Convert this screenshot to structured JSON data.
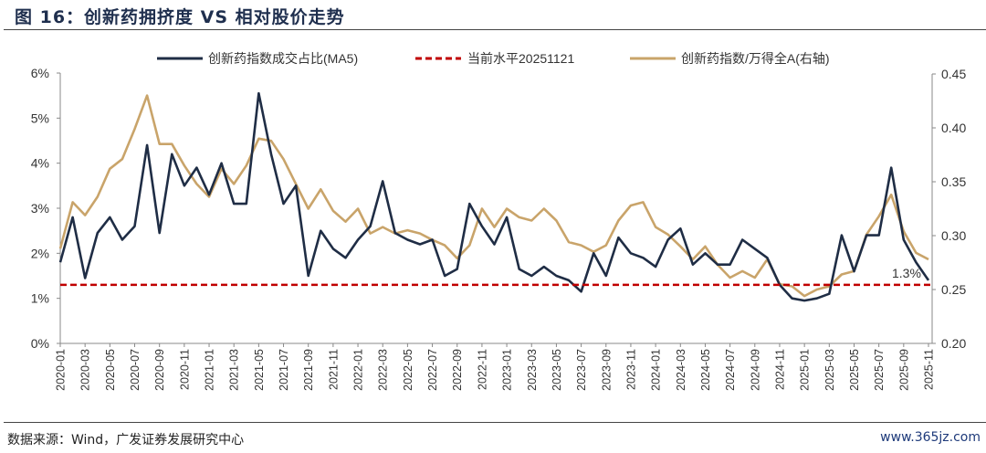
{
  "title": "图 16：创新药拥挤度 VS 相对股价走势",
  "source": "数据来源：Wind，广发证券发展研究中心",
  "watermark": "www.365jz.com",
  "chart_data": {
    "type": "line",
    "x": [
      "2020-01",
      "2020-02",
      "2020-03",
      "2020-04",
      "2020-05",
      "2020-06",
      "2020-07",
      "2020-08",
      "2020-09",
      "2020-10",
      "2020-11",
      "2020-12",
      "2021-01",
      "2021-02",
      "2021-03",
      "2021-04",
      "2021-05",
      "2021-06",
      "2021-07",
      "2021-08",
      "2021-09",
      "2021-10",
      "2021-11",
      "2021-12",
      "2022-01",
      "2022-02",
      "2022-03",
      "2022-04",
      "2022-05",
      "2022-06",
      "2022-07",
      "2022-08",
      "2022-09",
      "2022-10",
      "2022-11",
      "2022-12",
      "2023-01",
      "2023-02",
      "2023-03",
      "2023-04",
      "2023-05",
      "2023-06",
      "2023-07",
      "2023-08",
      "2023-09",
      "2023-10",
      "2023-11",
      "2023-12",
      "2024-01",
      "2024-02",
      "2024-03",
      "2024-04",
      "2024-05",
      "2024-06",
      "2024-07",
      "2024-08",
      "2024-09",
      "2024-10",
      "2024-11",
      "2024-12",
      "2025-01",
      "2025-02",
      "2025-03",
      "2025-04",
      "2025-05",
      "2025-06",
      "2025-07",
      "2025-08",
      "2025-09",
      "2025-10",
      "2025-11"
    ],
    "x_tick_labels": [
      "2020-01",
      "2020-03",
      "2020-05",
      "2020-07",
      "2020-09",
      "2020-11",
      "2021-01",
      "2021-03",
      "2021-05",
      "2021-07",
      "2021-09",
      "2021-11",
      "2022-01",
      "2022-03",
      "2022-05",
      "2022-07",
      "2022-09",
      "2022-11",
      "2023-01",
      "2023-03",
      "2023-05",
      "2023-07",
      "2023-09",
      "2023-11",
      "2024-01",
      "2024-03",
      "2024-05",
      "2024-07",
      "2024-09",
      "2024-11",
      "2025-01",
      "2025-03",
      "2025-05",
      "2025-07",
      "2025-09",
      "2025-11"
    ],
    "left_axis": {
      "ylim": [
        0,
        6
      ],
      "unit": "%",
      "tick_labels": [
        "0%",
        "1%",
        "2%",
        "3%",
        "4%",
        "5%",
        "6%"
      ]
    },
    "right_axis": {
      "ylim": [
        0.2,
        0.45
      ],
      "tick_labels": [
        "0.20",
        "0.25",
        "0.30",
        "0.35",
        "0.40",
        "0.45"
      ]
    },
    "series": [
      {
        "name": "创新药指数成交占比(MA5)",
        "axis": "left",
        "color": "#1f2d45",
        "values": [
          1.8,
          2.8,
          1.45,
          2.45,
          2.8,
          2.3,
          2.6,
          4.4,
          2.45,
          4.2,
          3.5,
          3.9,
          3.3,
          4.0,
          3.1,
          3.1,
          5.55,
          4.2,
          3.1,
          3.5,
          1.5,
          2.5,
          2.1,
          1.9,
          2.3,
          2.6,
          3.6,
          2.45,
          2.3,
          2.2,
          2.3,
          1.5,
          1.65,
          3.1,
          2.6,
          2.2,
          2.8,
          1.65,
          1.5,
          1.7,
          1.5,
          1.4,
          1.15,
          2.0,
          1.5,
          2.35,
          2.0,
          1.9,
          1.7,
          2.3,
          2.55,
          1.75,
          2.0,
          1.75,
          1.75,
          2.3,
          2.1,
          1.9,
          1.3,
          1.0,
          0.95,
          1.0,
          1.1,
          2.4,
          1.6,
          2.4,
          2.4,
          3.9,
          2.3,
          1.8,
          1.4
        ]
      },
      {
        "name": "当前水平20251121",
        "axis": "left",
        "color": "#c00000",
        "style": "dashed",
        "constant": 1.3
      },
      {
        "name": "创新药指数/万得全A(右轴)",
        "axis": "right",
        "color": "#c9a46a",
        "values": [
          0.288,
          0.331,
          0.319,
          0.336,
          0.362,
          0.371,
          0.399,
          0.43,
          0.385,
          0.385,
          0.365,
          0.348,
          0.336,
          0.362,
          0.348,
          0.365,
          0.39,
          0.388,
          0.371,
          0.348,
          0.325,
          0.343,
          0.323,
          0.313,
          0.325,
          0.302,
          0.308,
          0.302,
          0.305,
          0.302,
          0.296,
          0.291,
          0.279,
          0.291,
          0.325,
          0.308,
          0.325,
          0.317,
          0.314,
          0.325,
          0.314,
          0.294,
          0.291,
          0.285,
          0.291,
          0.314,
          0.328,
          0.331,
          0.308,
          0.301,
          0.29,
          0.278,
          0.29,
          0.273,
          0.261,
          0.267,
          0.261,
          0.278,
          0.255,
          0.253,
          0.244,
          0.25,
          0.253,
          0.264,
          0.267,
          0.301,
          0.318,
          0.338,
          0.304,
          0.284,
          0.278
        ]
      }
    ],
    "annotation": "1.3%",
    "legend": "top",
    "grid": false
  }
}
